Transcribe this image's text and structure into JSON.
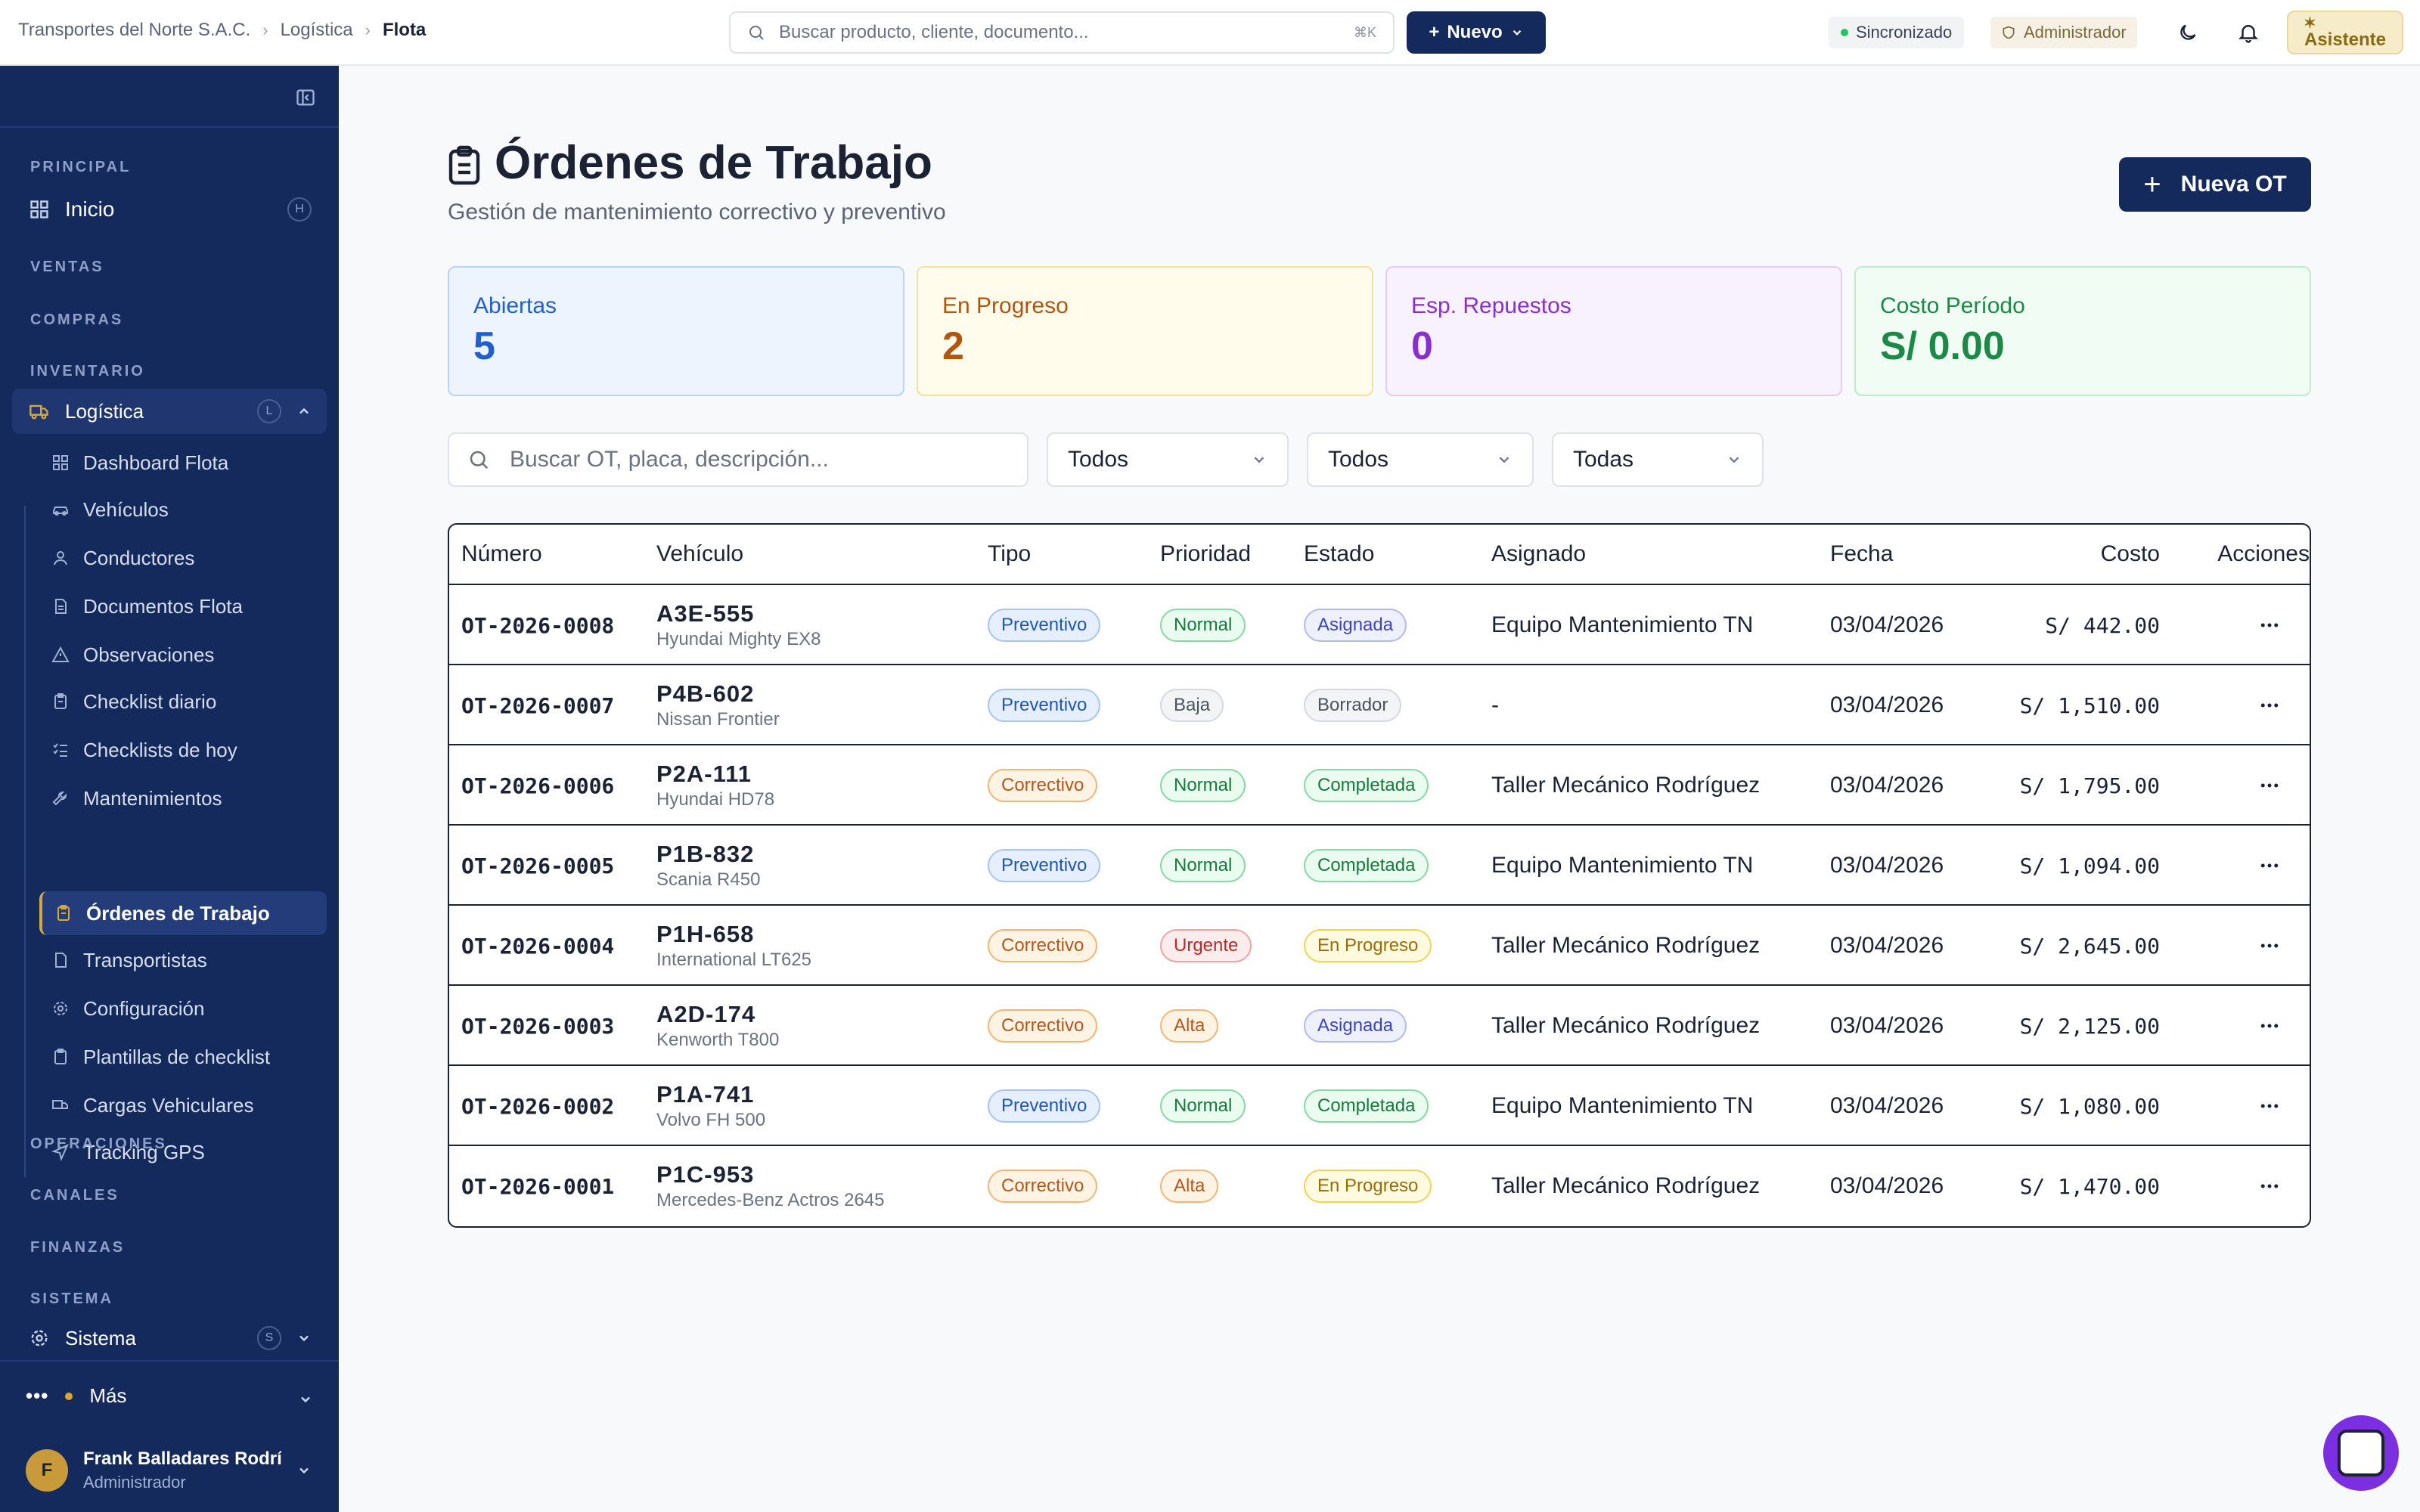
{
  "breadcrumb": [
    "Transportes del Norte S.A.C.",
    "Logística",
    "Flota"
  ],
  "search": {
    "placeholder": "Buscar producto, cliente, documento...",
    "shortcut": "⌘K"
  },
  "topbar": {
    "new_label": "Nuevo",
    "sync_label": "Sincronizado",
    "role_label": "Administrador",
    "assistant_label": "Asistente"
  },
  "sidebar": {
    "sections": {
      "principal": "PRINCIPAL",
      "ventas": "VENTAS",
      "compras": "COMPRAS",
      "inventario": "INVENTARIO",
      "operaciones": "OPERACIONES",
      "canales": "CANALES",
      "finanzas": "FINANZAS",
      "sistema": "SISTEMA"
    },
    "inicio": {
      "label": "Inicio",
      "key": "H"
    },
    "logistica": {
      "label": "Logística",
      "key": "L"
    },
    "sistema": {
      "label": "Sistema",
      "key": "S"
    },
    "items": [
      {
        "label": "Dashboard Flota",
        "icon": "grid-icon"
      },
      {
        "label": "Vehículos",
        "icon": "car-icon"
      },
      {
        "label": "Conductores",
        "icon": "user-icon"
      },
      {
        "label": "Documentos Flota",
        "icon": "document-icon"
      },
      {
        "label": "Observaciones",
        "icon": "warning-icon"
      },
      {
        "label": "Checklist diario",
        "icon": "clipboard-icon"
      },
      {
        "label": "Checklists de hoy",
        "icon": "list-check-icon"
      },
      {
        "label": "Mantenimientos",
        "icon": "wrench-icon"
      },
      {
        "label": "Órdenes de Trabajo",
        "icon": "clipboard-icon"
      },
      {
        "label": "Transportistas",
        "icon": "document-icon"
      },
      {
        "label": "Configuración",
        "icon": "gear-icon"
      },
      {
        "label": "Plantillas de checklist",
        "icon": "clipboard-icon"
      },
      {
        "label": "Cargas Vehiculares",
        "icon": "truck-icon"
      },
      {
        "label": "Tracking GPS",
        "icon": "navigation-icon"
      }
    ],
    "more_label": "Más",
    "user": {
      "initial": "F",
      "name": "Frank Balladares Rodríguez",
      "role": "Administrador"
    }
  },
  "page": {
    "title": "Órdenes de Trabajo",
    "subtitle": "Gestión de mantenimiento correctivo y preventivo",
    "new_button": "Nueva OT"
  },
  "stats": [
    {
      "label": "Abiertas",
      "value": "5"
    },
    {
      "label": "En Progreso",
      "value": "2"
    },
    {
      "label": "Esp. Repuestos",
      "value": "0"
    },
    {
      "label": "Costo Período",
      "value": "S/ 0.00"
    }
  ],
  "filters": {
    "search_placeholder": "Buscar OT, placa, descripción...",
    "tipo": "Todos",
    "prioridad": "Todos",
    "estado": "Todas"
  },
  "table": {
    "columns": [
      "Número",
      "Vehículo",
      "Tipo",
      "Prioridad",
      "Estado",
      "Asignado",
      "Fecha",
      "Costo",
      "Acciones"
    ],
    "rows": [
      {
        "numero": "OT-2026-0008",
        "placa": "A3E-555",
        "modelo": "Hyundai Mighty EX8",
        "tipo": "Preventivo",
        "prioridad": "Normal",
        "estado": "Asignada",
        "asignado": "Equipo Mantenimiento TN",
        "fecha": "03/04/2026",
        "costo": "S/ 442.00"
      },
      {
        "numero": "OT-2026-0007",
        "placa": "P4B-602",
        "modelo": "Nissan Frontier",
        "tipo": "Preventivo",
        "prioridad": "Baja",
        "estado": "Borrador",
        "asignado": "-",
        "fecha": "03/04/2026",
        "costo": "S/ 1,510.00"
      },
      {
        "numero": "OT-2026-0006",
        "placa": "P2A-111",
        "modelo": "Hyundai HD78",
        "tipo": "Correctivo",
        "prioridad": "Normal",
        "estado": "Completada",
        "asignado": "Taller Mecánico Rodríguez",
        "fecha": "03/04/2026",
        "costo": "S/ 1,795.00"
      },
      {
        "numero": "OT-2026-0005",
        "placa": "P1B-832",
        "modelo": "Scania R450",
        "tipo": "Preventivo",
        "prioridad": "Normal",
        "estado": "Completada",
        "asignado": "Equipo Mantenimiento TN",
        "fecha": "03/04/2026",
        "costo": "S/ 1,094.00"
      },
      {
        "numero": "OT-2026-0004",
        "placa": "P1H-658",
        "modelo": "International LT625",
        "tipo": "Correctivo",
        "prioridad": "Urgente",
        "estado": "En Progreso",
        "asignado": "Taller Mecánico Rodríguez",
        "fecha": "03/04/2026",
        "costo": "S/ 2,645.00"
      },
      {
        "numero": "OT-2026-0003",
        "placa": "A2D-174",
        "modelo": "Kenworth T800",
        "tipo": "Correctivo",
        "prioridad": "Alta",
        "estado": "Asignada",
        "asignado": "Taller Mecánico Rodríguez",
        "fecha": "03/04/2026",
        "costo": "S/ 2,125.00"
      },
      {
        "numero": "OT-2026-0002",
        "placa": "P1A-741",
        "modelo": "Volvo FH 500",
        "tipo": "Preventivo",
        "prioridad": "Normal",
        "estado": "Completada",
        "asignado": "Equipo Mantenimiento TN",
        "fecha": "03/04/2026",
        "costo": "S/ 1,080.00"
      },
      {
        "numero": "OT-2026-0001",
        "placa": "P1C-953",
        "modelo": "Mercedes-Benz Actros 2645",
        "tipo": "Correctivo",
        "prioridad": "Alta",
        "estado": "En Progreso",
        "asignado": "Taller Mecánico Rodríguez",
        "fecha": "03/04/2026",
        "costo": "S/ 1,470.00"
      }
    ]
  },
  "colors": {
    "brand_navy": "#14295c",
    "accent_gold": "#d4a93b",
    "fab_purple": "#7c2fe0"
  }
}
